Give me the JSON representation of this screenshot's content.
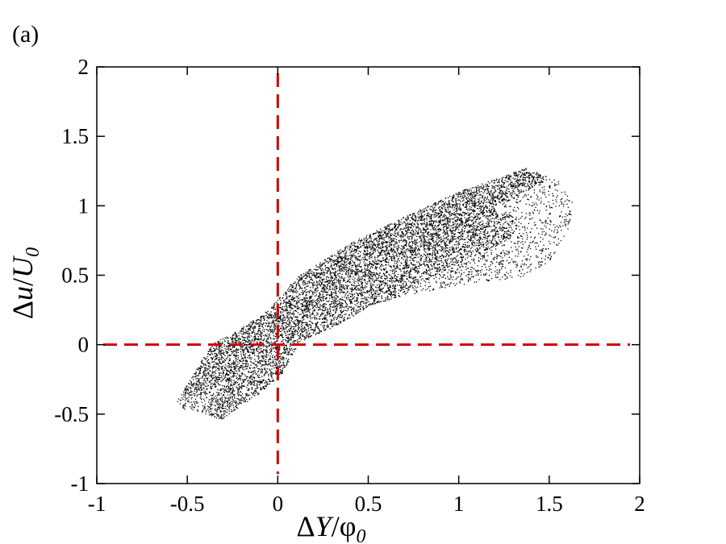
{
  "panel_label": "(a)",
  "chart_data": {
    "type": "scatter",
    "xlabel": {
      "delta": "Δ",
      "var": "Y",
      "slash": "/",
      "sym": "φ",
      "sub": "0"
    },
    "ylabel": {
      "delta": "Δ",
      "var": "u",
      "slash": "/",
      "sym": "U",
      "sub": "0"
    },
    "xlim": [
      -1,
      2
    ],
    "ylim": [
      -1,
      2
    ],
    "x_ticks": [
      -1,
      -0.5,
      0,
      0.5,
      1,
      1.5,
      2
    ],
    "y_ticks": [
      -1,
      -0.5,
      0,
      0.5,
      1,
      1.5,
      2
    ],
    "x_tick_labels": [
      "-1",
      "-0.5",
      "0",
      "0.5",
      "1",
      "1.5",
      "2"
    ],
    "y_tick_labels": [
      "-1",
      "-0.5",
      "0",
      "0.5",
      "1",
      "1.5",
      "2"
    ],
    "grid": false,
    "point_color": "#000000",
    "reference_line_color": "#cc0000",
    "reference_lines": [
      {
        "orientation": "vertical",
        "x": 0,
        "style": "dashed"
      },
      {
        "orientation": "horizontal",
        "y": 0,
        "style": "dashed"
      }
    ],
    "point_cloud": {
      "approx_points": 9000,
      "outline": [
        [
          -0.57,
          -0.44
        ],
        [
          -0.45,
          -0.18
        ],
        [
          -0.37,
          0.0
        ],
        [
          -0.22,
          0.1
        ],
        [
          -0.05,
          0.25
        ],
        [
          0.1,
          0.48
        ],
        [
          0.4,
          0.73
        ],
        [
          0.7,
          0.92
        ],
        [
          1.0,
          1.1
        ],
        [
          1.37,
          1.27
        ],
        [
          1.55,
          1.18
        ],
        [
          1.63,
          1.05
        ],
        [
          1.62,
          0.85
        ],
        [
          1.48,
          0.55
        ],
        [
          1.3,
          0.47
        ],
        [
          1.1,
          0.45
        ],
        [
          0.8,
          0.38
        ],
        [
          0.55,
          0.3
        ],
        [
          0.3,
          0.12
        ],
        [
          0.12,
          0.02
        ],
        [
          0.02,
          -0.22
        ],
        [
          -0.1,
          -0.35
        ],
        [
          -0.31,
          -0.54
        ],
        [
          -0.4,
          -0.5
        ],
        [
          -0.5,
          -0.47
        ]
      ]
    }
  }
}
